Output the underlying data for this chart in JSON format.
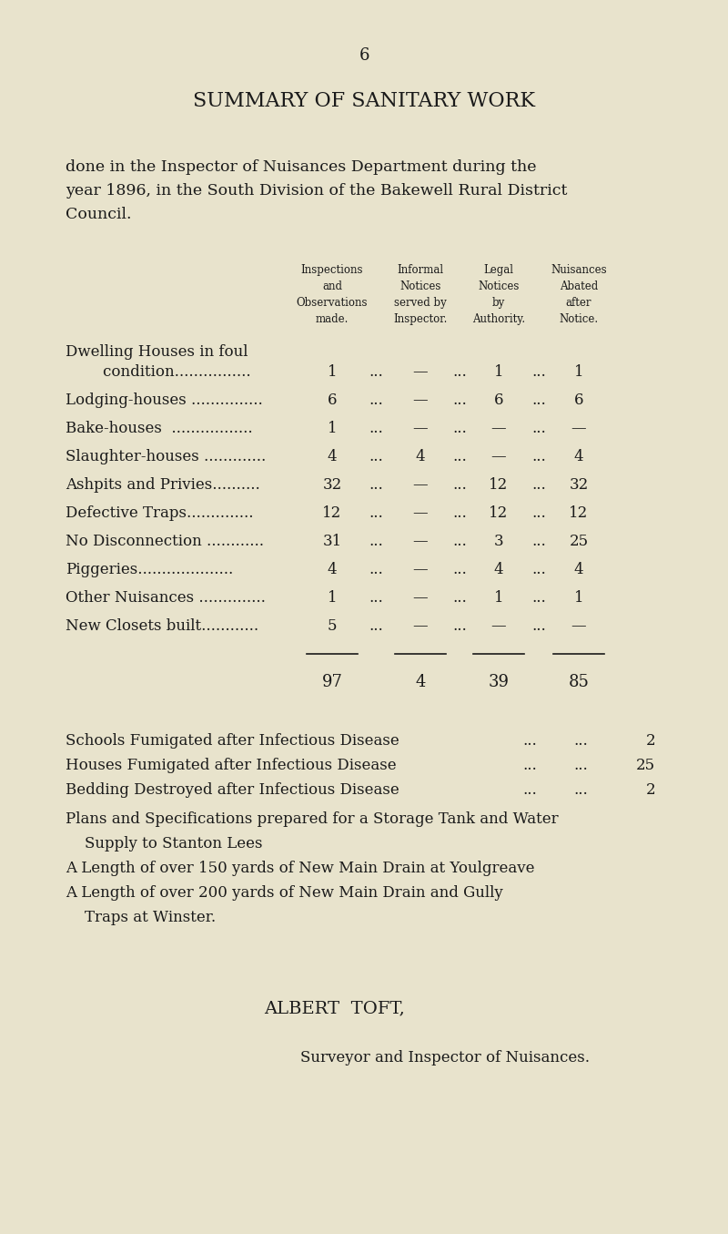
{
  "bg_color": "#e8e3cc",
  "text_color": "#1a1a1a",
  "page_number": "6",
  "title": "SUMMARY OF SANITARY WORK",
  "intro_lines": [
    "done in the Inspector of Nuisances Department during the",
    "year 1896, in the South Division of the Bakewell Rural District",
    "Council."
  ],
  "col_headers": [
    [
      "Inspections",
      "and",
      "Observations",
      "made."
    ],
    [
      "Informal",
      "Notices",
      "served by",
      "Inspector."
    ],
    [
      "Legal",
      "Notices",
      "by",
      "Authority."
    ],
    [
      "Nuisances",
      "Abated",
      "after",
      "Notice."
    ]
  ],
  "rows": [
    {
      "label1": "Dwelling Houses in foul",
      "label2": "    condition................",
      "vals": [
        "1",
        "—",
        "1",
        "1"
      ]
    },
    {
      "label1": "Lodging-houses ...............",
      "label2": null,
      "vals": [
        "6",
        "—",
        "6",
        "6"
      ]
    },
    {
      "label1": "Bake-houses  .................",
      "label2": null,
      "vals": [
        "1",
        "—",
        "—",
        "—"
      ]
    },
    {
      "label1": "Slaughter-houses .............",
      "label2": null,
      "vals": [
        "4",
        "4",
        "—",
        "4"
      ]
    },
    {
      "label1": "Ashpits and Privies..........",
      "label2": null,
      "vals": [
        "32",
        "—",
        "12",
        "32"
      ]
    },
    {
      "label1": "Defective Traps..............",
      "label2": null,
      "vals": [
        "12",
        "—",
        "12",
        "12"
      ]
    },
    {
      "label1": "No Disconnection ............",
      "label2": null,
      "vals": [
        "31",
        "—",
        "3",
        "25"
      ]
    },
    {
      "label1": "Piggeries....................",
      "label2": null,
      "vals": [
        "4",
        "—",
        "4",
        "4"
      ]
    },
    {
      "label1": "Other Nuisances ..............",
      "label2": null,
      "vals": [
        "1",
        "—",
        "1",
        "1"
      ]
    },
    {
      "label1": "New Closets built............",
      "label2": null,
      "vals": [
        "5",
        "—",
        "—",
        "—"
      ]
    }
  ],
  "totals": [
    "97",
    "4",
    "39",
    "85"
  ],
  "extra_lines": [
    [
      "Schools Fumigated after Infectious Disease",
      "2"
    ],
    [
      "Houses Fumigated after Infectious Disease",
      "25"
    ],
    [
      "Bedding Destroyed after Infectious Disease",
      "2"
    ]
  ],
  "notes": [
    "Plans and Specifications prepared for a Storage Tank and Water",
    "    Supply to Stanton Lees",
    "A Length of over 150 yards of New Main Drain at Youlgreave",
    "A Length of over 200 yards of New Main Drain and Gully",
    "    Traps at Winster."
  ],
  "signature_name": "ALBERT  TOFT,",
  "signature_title": "Surveyor and Inspector of Nuisances."
}
